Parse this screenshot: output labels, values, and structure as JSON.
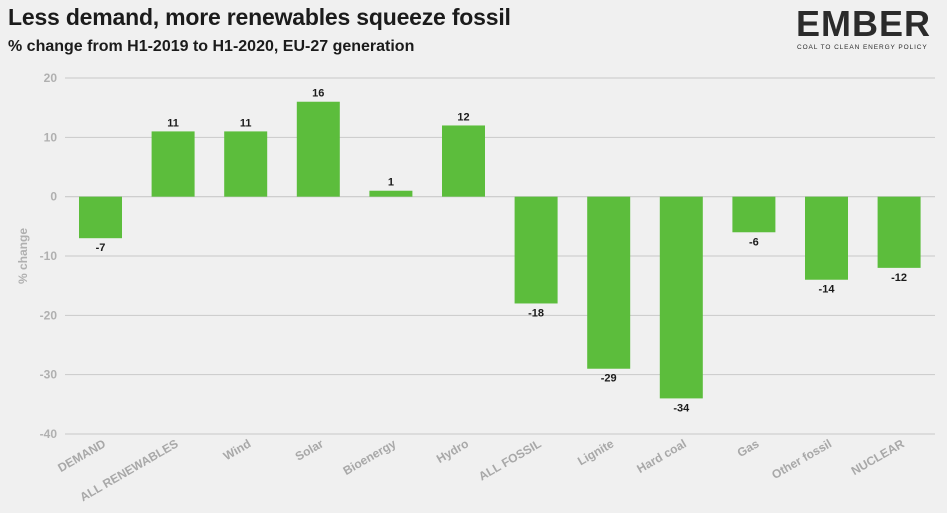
{
  "chart_data": {
    "type": "bar",
    "title": "Less demand, more renewables squeeze fossil",
    "subtitle": "% change from H1-2019 to H1-2020, EU-27 generation",
    "ylabel": "% change",
    "xlabel": "",
    "ylim": [
      -40,
      20
    ],
    "yticks": [
      -40,
      -30,
      -20,
      -10,
      0,
      10,
      20
    ],
    "grid": true,
    "legend": "none",
    "categories": [
      "DEMAND",
      "ALL RENEWABLES",
      "Wind",
      "Solar",
      "Bioenergy",
      "Hydro",
      "ALL FOSSIL",
      "Lignite",
      "Hard coal",
      "Gas",
      "Other fossil",
      "NUCLEAR"
    ],
    "series": [
      {
        "values": [
          -7,
          11,
          11,
          16,
          1,
          12,
          -18,
          -29,
          -34,
          -6,
          -14,
          -12
        ],
        "color": "#5cbd3c"
      }
    ]
  },
  "logo": {
    "word": "EMBER",
    "tagline": "COAL TO CLEAN ENERGY POLICY"
  },
  "colors": {
    "bar": "#5cbd3c",
    "grid": "#c9c9c9",
    "background": "#f0f0f0"
  }
}
